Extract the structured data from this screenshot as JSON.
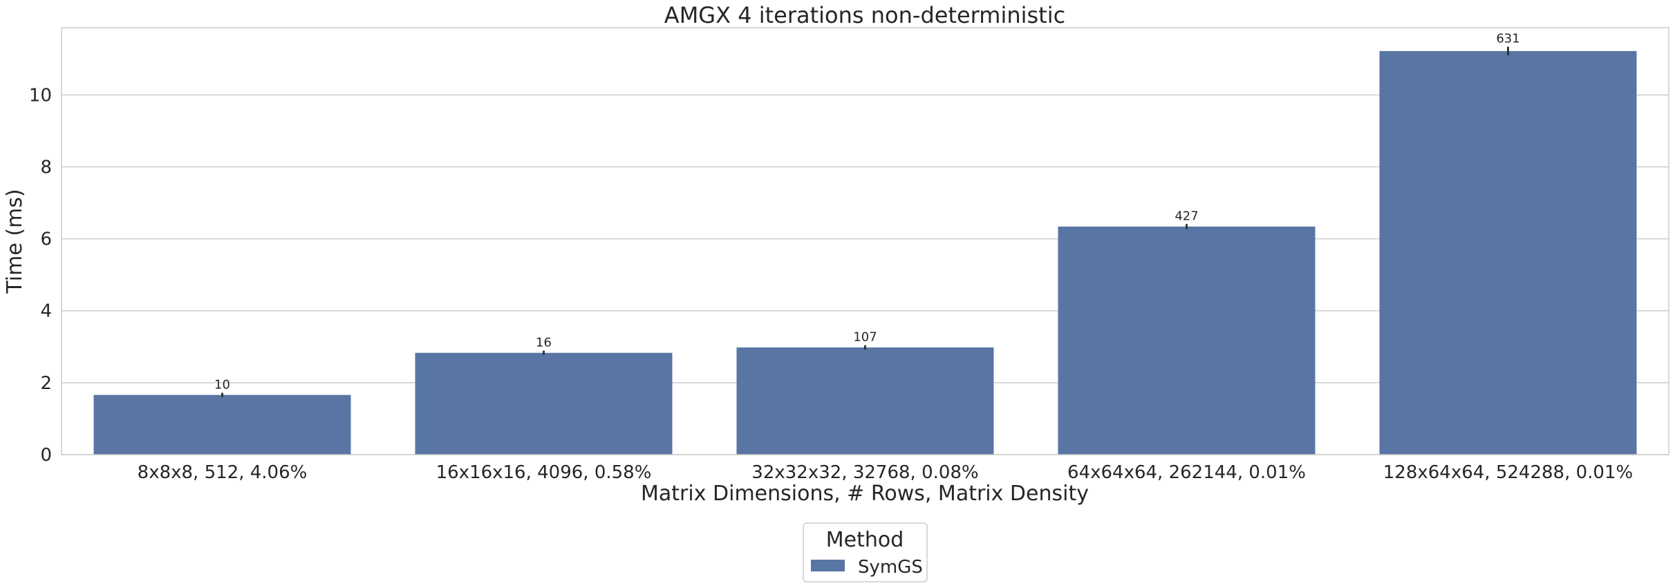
{
  "chart_data": {
    "type": "bar",
    "title": "AMGX 4 iterations non-deterministic",
    "xlabel": "Matrix Dimensions, # Rows, Matrix Density",
    "ylabel": "Time (ms)",
    "categories": [
      "8x8x8, 512, 4.06%",
      "16x16x16, 4096, 0.58%",
      "32x32x32, 32768, 0.08%",
      "64x64x64, 262144, 0.01%",
      "128x64x64, 524288, 0.01%"
    ],
    "series": [
      {
        "name": "SymGS",
        "color": "#5875a4",
        "values": [
          1.66,
          2.83,
          2.98,
          6.34,
          11.22
        ],
        "error": [
          0.06,
          0.06,
          0.06,
          0.07,
          0.12
        ],
        "labels": [
          "10",
          "16",
          "107",
          "427",
          "631"
        ]
      }
    ],
    "ylim": [
      0,
      11.87
    ],
    "yticks": [
      0,
      2,
      4,
      6,
      8,
      10
    ],
    "grid": "horizontal",
    "legend": {
      "title": "Method",
      "position": "bottom-center"
    }
  }
}
